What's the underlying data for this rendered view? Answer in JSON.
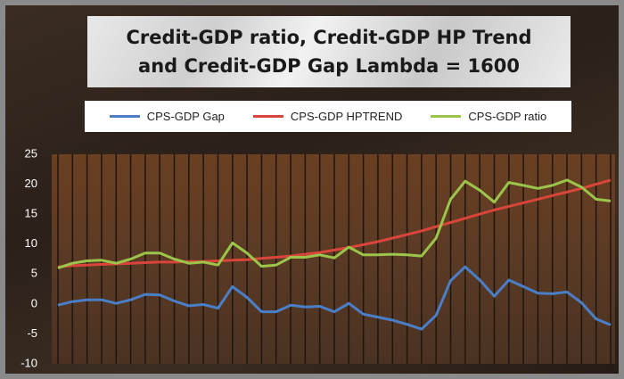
{
  "chart_data": {
    "type": "line",
    "title": "Credit-GDP ratio, Credit-GDP HP Trend and Credit-GDP Gap Lambda = 1600",
    "categories": [
      null,
      null,
      null,
      null,
      null,
      null,
      null,
      null,
      null,
      null,
      null,
      null,
      null,
      null,
      null,
      null,
      null,
      null,
      null,
      null,
      null,
      null,
      null,
      null,
      null,
      null,
      null,
      null,
      null,
      null,
      null,
      null,
      null,
      null,
      null,
      null,
      null,
      null,
      null
    ],
    "series": [
      {
        "name": "CPS-GDP Gap",
        "color": "#4a7fc8",
        "values": [
          -0.2,
          0.4,
          0.7,
          0.7,
          0.1,
          0.7,
          1.6,
          1.5,
          0.5,
          -0.3,
          -0.1,
          -0.7,
          2.9,
          1.1,
          -1.3,
          -1.3,
          -0.2,
          -0.5,
          -0.4,
          -1.3,
          0.1,
          -1.7,
          -2.2,
          -2.7,
          -3.4,
          -4.2,
          -1.9,
          3.9,
          6.2,
          4.0,
          1.3,
          4.0,
          2.9,
          1.8,
          1.7,
          2.0,
          0.2,
          -2.5,
          -3.5
        ]
      },
      {
        "name": "CPS-GDP HPTREND",
        "color": "#d9453a",
        "values": [
          6.2,
          6.4,
          6.5,
          6.6,
          6.7,
          6.8,
          6.9,
          7.0,
          7.0,
          7.1,
          7.1,
          7.2,
          7.3,
          7.4,
          7.6,
          7.8,
          8.0,
          8.3,
          8.6,
          9.0,
          9.4,
          9.9,
          10.4,
          11.0,
          11.6,
          12.2,
          12.9,
          13.6,
          14.3,
          15.0,
          15.7,
          16.3,
          16.9,
          17.5,
          18.1,
          18.7,
          19.3,
          20.0,
          20.7
        ]
      },
      {
        "name": "CPS-GDP ratio",
        "color": "#9bc54a",
        "values": [
          6.0,
          6.8,
          7.2,
          7.3,
          6.8,
          7.5,
          8.5,
          8.5,
          7.5,
          6.8,
          7.0,
          6.5,
          10.2,
          8.5,
          6.3,
          6.5,
          7.8,
          7.8,
          8.2,
          7.7,
          9.5,
          8.2,
          8.2,
          8.3,
          8.2,
          8.0,
          11.0,
          17.5,
          20.5,
          19.0,
          17.0,
          20.3,
          19.8,
          19.3,
          19.8,
          20.7,
          19.5,
          17.5,
          17.2
        ]
      }
    ],
    "ylim": [
      -10,
      25
    ],
    "yticks": [
      -10,
      -5,
      0,
      5,
      10,
      15,
      20,
      25
    ],
    "grid": true
  }
}
